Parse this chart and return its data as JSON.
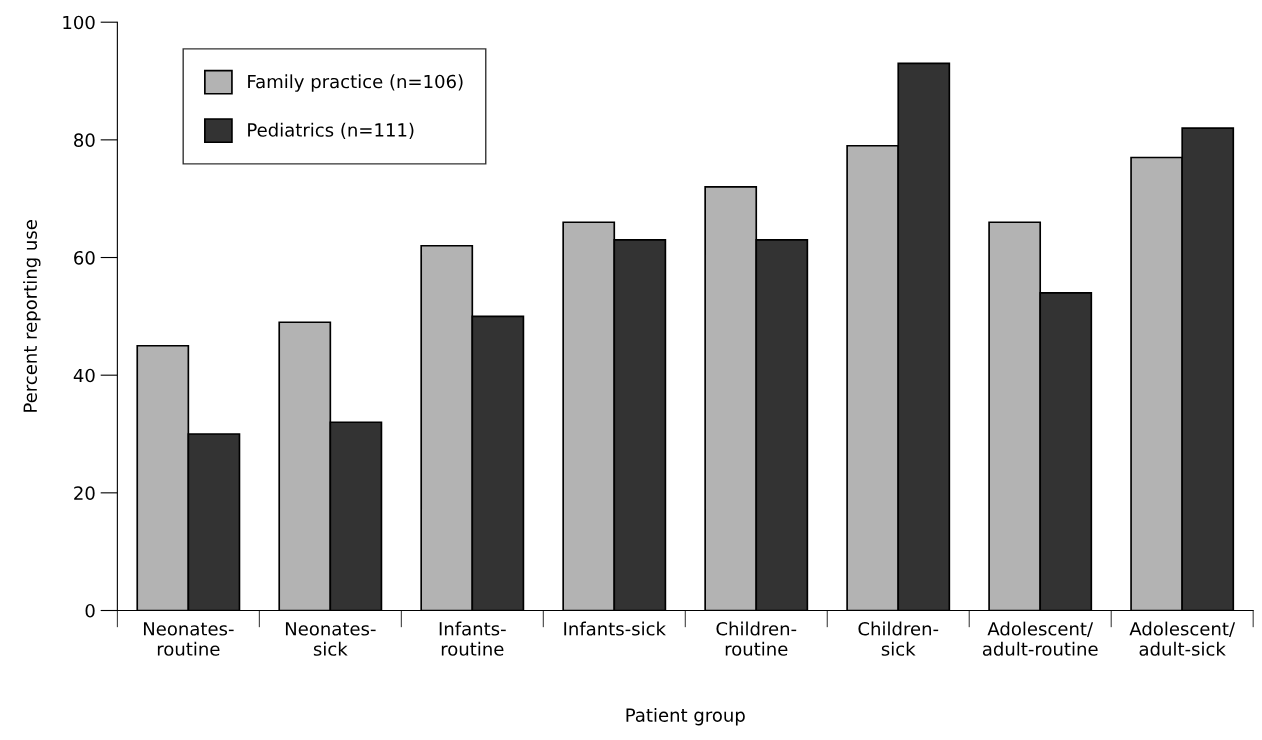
{
  "chart_data": {
    "type": "bar",
    "xlabel": "Patient group",
    "ylabel": "Percent reporting use",
    "categories": [
      "Neonates-\nroutine",
      "Neonates-\nsick",
      "Infants-\nroutine",
      "Infants-sick",
      "Children-\nroutine",
      "Children-\nsick",
      "Adolescent/\nadult-routine",
      "Adolescent/\nadult-sick"
    ],
    "series": [
      {
        "name": "Family practice (n=106)",
        "color": "#b3b3b3",
        "values": [
          45,
          49,
          62,
          66,
          72,
          79,
          66,
          77
        ]
      },
      {
        "name": "Pediatrics (n=111)",
        "color": "#333333",
        "values": [
          30,
          32,
          50,
          63,
          63,
          93,
          54,
          82
        ]
      }
    ],
    "ylim": [
      0,
      100
    ],
    "yticks": [
      0,
      20,
      40,
      60,
      80,
      100
    ],
    "grid": false,
    "legend": "top left"
  }
}
